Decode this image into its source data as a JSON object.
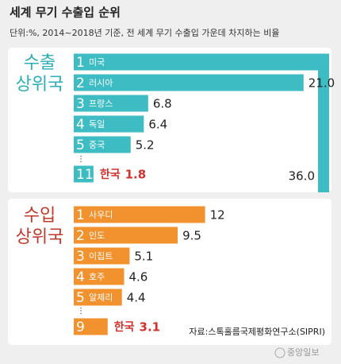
{
  "title": "세계 무기 수출입 순위",
  "subtitle": "단위:%, 2014~2018년 기준, 전 세계 무기 수출입 가운데 차지하는 비율",
  "source": "자료:스톡홀름국제평화연구소(SIPRI)",
  "publisher": "중앙일보",
  "chart_data": [
    {
      "type": "bar",
      "orientation": "horizontal",
      "title_lines": [
        "수출",
        "상위국"
      ],
      "title_color": "#2aaeb8",
      "ranks": [
        1,
        2,
        3,
        4,
        5,
        11
      ],
      "categories": [
        "미국",
        "러시아",
        "프랑스",
        "독일",
        "중국",
        "한국"
      ],
      "values": [
        36.0,
        21.0,
        6.8,
        6.4,
        5.2,
        1.8
      ],
      "value_labels": [
        "36.0",
        "21.0",
        "6.8",
        "6.4",
        "5.2",
        "1.8"
      ],
      "color": "#3dbcc4",
      "label_colors": [
        "#ffffff",
        "#ffffff",
        "#ffffff",
        "#ffffff",
        "#ffffff",
        "#d0312d"
      ]
    },
    {
      "type": "bar",
      "orientation": "horizontal",
      "title_lines": [
        "수입",
        "상위국"
      ],
      "title_color": "#c0392b",
      "ranks": [
        1,
        2,
        3,
        4,
        5,
        9
      ],
      "categories": [
        "사우디",
        "인도",
        "이집트",
        "호주",
        "알제리",
        "한국"
      ],
      "values": [
        12,
        9.5,
        5.1,
        4.6,
        4.4,
        3.1
      ],
      "value_labels": [
        "12",
        "9.5",
        "5.1",
        "4.6",
        "4.4",
        "3.1"
      ],
      "color": "#f2922e",
      "label_colors": [
        "#ffffff",
        "#ffffff",
        "#ffffff",
        "#ffffff",
        "#ffffff",
        "#d0312d"
      ]
    }
  ]
}
